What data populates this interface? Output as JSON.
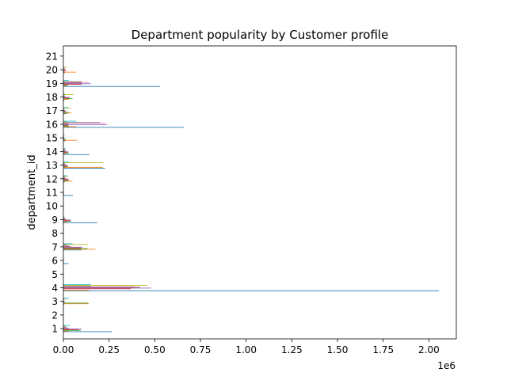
{
  "chart_data": {
    "type": "bar",
    "orientation": "horizontal",
    "title": "Department popularity by Customer profile",
    "ylabel": "department_id",
    "xlabel": "",
    "x_multiplier_label": "1e6",
    "xlim": [
      0,
      2150000
    ],
    "x_ticks": [
      0,
      250000,
      500000,
      750000,
      1000000,
      1250000,
      1500000,
      1750000,
      2000000
    ],
    "x_tick_labels": [
      "0.00",
      "0.25",
      "0.50",
      "0.75",
      "1.00",
      "1.25",
      "1.50",
      "1.75",
      "2.00"
    ],
    "categories": [
      "1",
      "2",
      "3",
      "4",
      "5",
      "6",
      "7",
      "8",
      "9",
      "10",
      "11",
      "12",
      "13",
      "14",
      "15",
      "16",
      "17",
      "18",
      "19",
      "20",
      "21"
    ],
    "series": [
      {
        "color": "#1f77b4",
        "values": [
          265000,
          2000,
          5000,
          2055000,
          2000,
          28000,
          100000,
          2000,
          185000,
          2000,
          52000,
          8000,
          228000,
          142000,
          10000,
          660000,
          20000,
          5000,
          528000,
          8000,
          2000
        ]
      },
      {
        "color": "#ff7f0e",
        "values": [
          28000,
          1000,
          140000,
          140000,
          1000,
          3000,
          175000,
          1000,
          20000,
          1000,
          5000,
          50000,
          215000,
          10000,
          75000,
          72000,
          45000,
          30000,
          20000,
          70000,
          1000
        ]
      },
      {
        "color": "#2ca02c",
        "values": [
          95000,
          1000,
          135000,
          2000,
          1000,
          2000,
          132000,
          1000,
          42000,
          1000,
          4000,
          30000,
          25000,
          30000,
          15000,
          30000,
          30000,
          50000,
          25000,
          5000,
          1000
        ]
      },
      {
        "color": "#d62728",
        "values": [
          85000,
          1000,
          5000,
          370000,
          1000,
          2000,
          95000,
          1000,
          38000,
          1000,
          2000,
          25000,
          20000,
          25000,
          5000,
          25000,
          10000,
          30000,
          100000,
          15000,
          1000
        ]
      },
      {
        "color": "#9467bd",
        "values": [
          100000,
          1000,
          10000,
          480000,
          1000,
          2000,
          105000,
          1000,
          40000,
          1000,
          3000,
          30000,
          25000,
          28000,
          8000,
          240000,
          15000,
          40000,
          150000,
          10000,
          1000
        ]
      },
      {
        "color": "#8c564b",
        "values": [
          30000,
          1000,
          3000,
          420000,
          1000,
          2000,
          40000,
          1000,
          15000,
          1000,
          2000,
          15000,
          15000,
          15000,
          5000,
          30000,
          8000,
          10000,
          100000,
          10000,
          1000
        ]
      },
      {
        "color": "#e377c2",
        "values": [
          20000,
          1000,
          5000,
          390000,
          1000,
          2000,
          30000,
          1000,
          10000,
          1000,
          1000,
          10000,
          10000,
          12000,
          4000,
          230000,
          6000,
          8000,
          140000,
          8000,
          1000
        ]
      },
      {
        "color": "#7f7f7f",
        "values": [
          15000,
          1000,
          4000,
          150000,
          1000,
          1000,
          20000,
          1000,
          8000,
          1000,
          1000,
          8000,
          8000,
          10000,
          3000,
          200000,
          5000,
          6000,
          100000,
          6000,
          1000
        ]
      },
      {
        "color": "#bcbd22",
        "values": [
          10000,
          1000,
          15000,
          460000,
          1000,
          1000,
          135000,
          1000,
          5000,
          1000,
          1000,
          25000,
          220000,
          8000,
          6000,
          20000,
          40000,
          55000,
          10000,
          20000,
          1000
        ]
      },
      {
        "color": "#17becf",
        "values": [
          35000,
          1000,
          30000,
          150000,
          1000,
          1000,
          50000,
          1000,
          5000,
          1000,
          1000,
          20000,
          30000,
          10000,
          5000,
          70000,
          25000,
          10000,
          30000,
          5000,
          1000
        ]
      }
    ]
  }
}
